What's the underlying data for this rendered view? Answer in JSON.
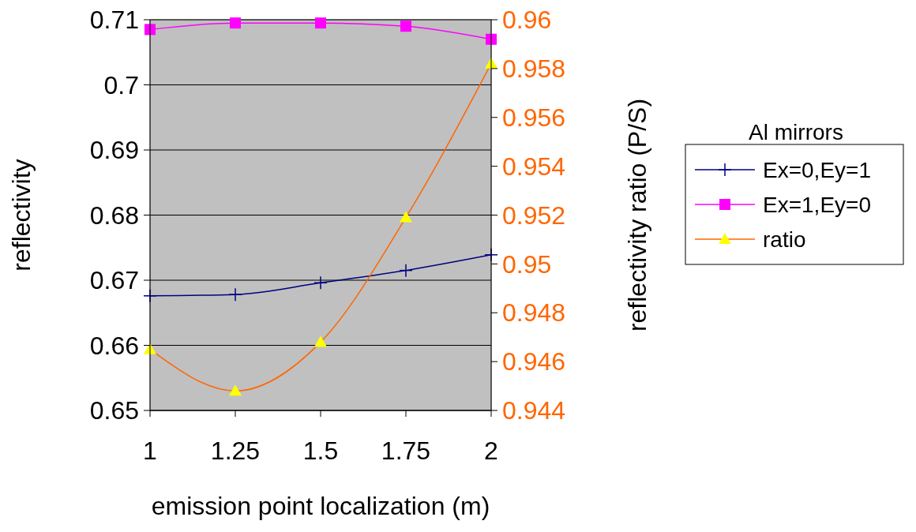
{
  "chart_data": {
    "type": "line",
    "xlabel": "emission point localization (m)",
    "ylabel": "reflectivity",
    "y2label": "reflectivity ratio (P/S)",
    "legend_title": "Al mirrors",
    "x": [
      1,
      1.25,
      1.5,
      1.75,
      2
    ],
    "series": [
      {
        "name": "Ex=0,Ey=1",
        "color": "#000080",
        "marker": "cross",
        "values": [
          0.6676,
          0.6678,
          0.6696,
          0.6715,
          0.6739
        ]
      },
      {
        "name": "Ex=1,Ey=0",
        "color": "#ff00ff",
        "marker": "square",
        "values": [
          0.7085,
          0.7095,
          0.7095,
          0.709,
          0.707
        ]
      },
      {
        "name": "ratio",
        "color": "#ff6600",
        "marker": "triangle",
        "axis": "y2",
        "values": [
          0.9465,
          0.9448,
          0.9468,
          0.9519,
          0.9582
        ]
      }
    ],
    "xlim": [
      1,
      2
    ],
    "xticks": [
      1,
      1.25,
      1.5,
      1.75,
      2
    ],
    "ylim": [
      0.65,
      0.71
    ],
    "yticks": [
      0.65,
      0.66,
      0.67,
      0.68,
      0.69,
      0.7,
      0.71
    ],
    "y2lim": [
      0.944,
      0.96
    ],
    "y2ticks": [
      0.944,
      0.946,
      0.948,
      0.95,
      0.952,
      0.954,
      0.956,
      0.958,
      0.96
    ],
    "grid": "y",
    "legend": "right"
  }
}
